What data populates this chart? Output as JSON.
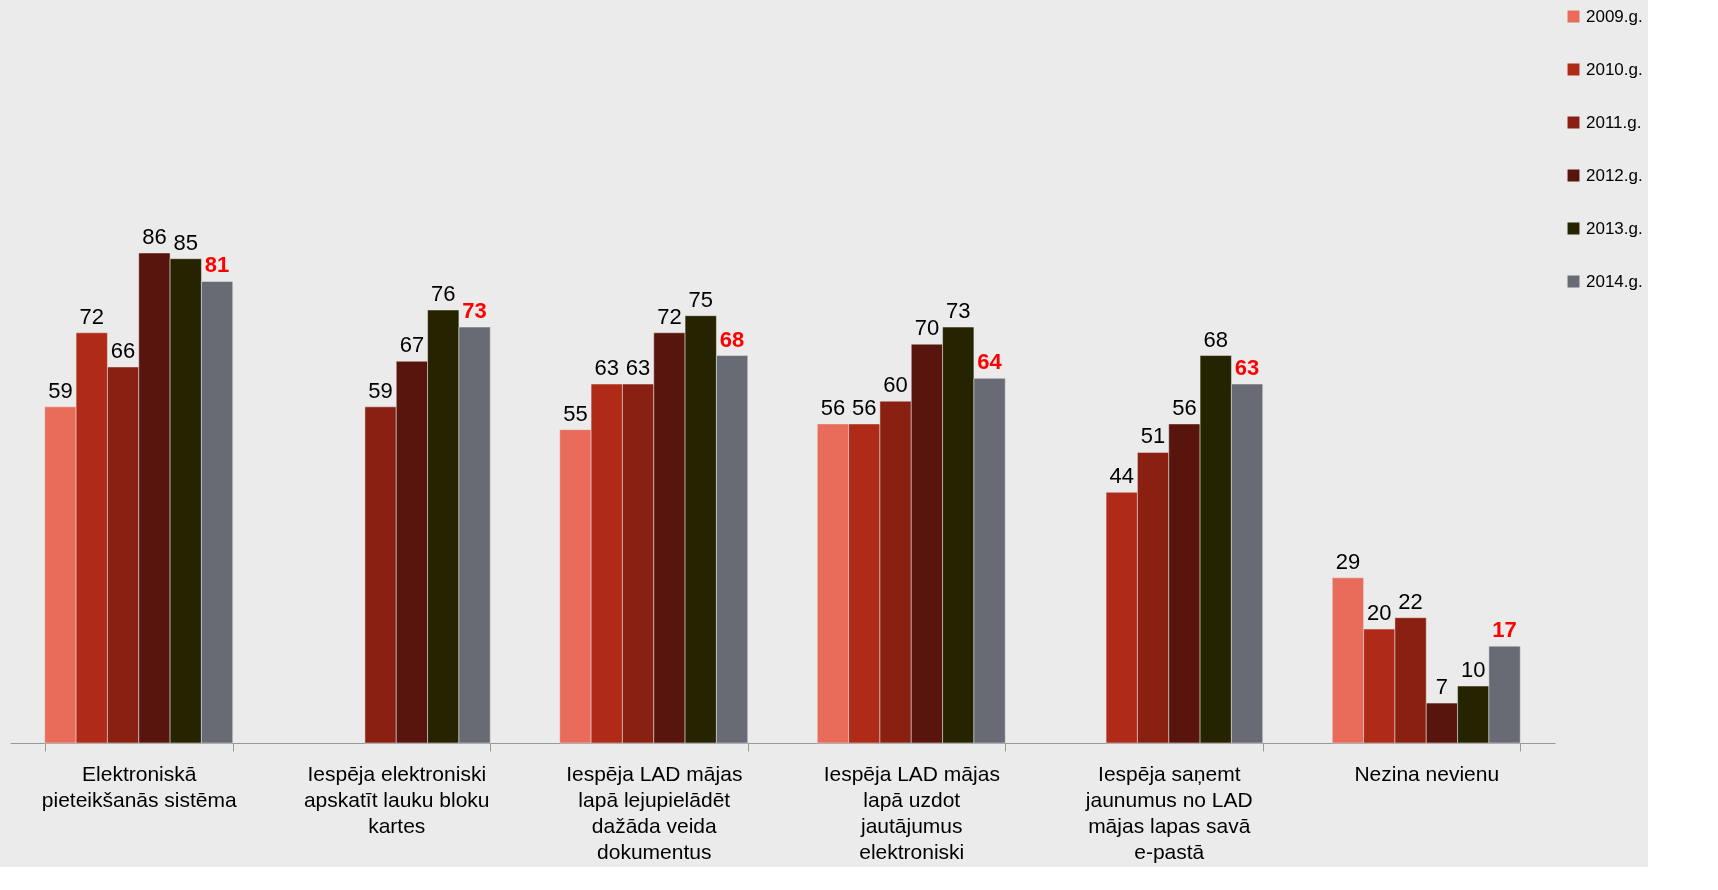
{
  "chart_data": {
    "type": "bar",
    "categories": [
      "Elektroniskā pieteikšanās sistēma",
      "Iespēja elektroniski apskatīt lauku bloku kartes",
      "Iespēja LAD mājas lapā lejupielādēt dažāda veida dokumentus",
      "Iespēja LAD mājas lapā uzdot jautājumus elektroniski",
      "Iespēja saņemt jaunumus no LAD mājas lapas savā e-pastā",
      "Nezina nevienu"
    ],
    "series": [
      {
        "name": "2009.g.",
        "color": "#e96b5a",
        "values": [
          59,
          null,
          55,
          56,
          null,
          29
        ]
      },
      {
        "name": "2010.g.",
        "color": "#b02a18",
        "values": [
          72,
          null,
          63,
          56,
          44,
          20
        ]
      },
      {
        "name": "2011.g.",
        "color": "#8a2012",
        "values": [
          66,
          59,
          63,
          60,
          51,
          22
        ]
      },
      {
        "name": "2012.g.",
        "color": "#58150d",
        "values": [
          86,
          67,
          72,
          70,
          56,
          7
        ]
      },
      {
        "name": "2013.g.",
        "color": "#262400",
        "values": [
          85,
          76,
          75,
          73,
          68,
          10
        ]
      },
      {
        "name": "2014.g.",
        "color": "#686b73",
        "values": [
          81,
          73,
          68,
          64,
          63,
          17
        ]
      }
    ],
    "data_labels": true,
    "legend": "top right",
    "grid": false
  }
}
